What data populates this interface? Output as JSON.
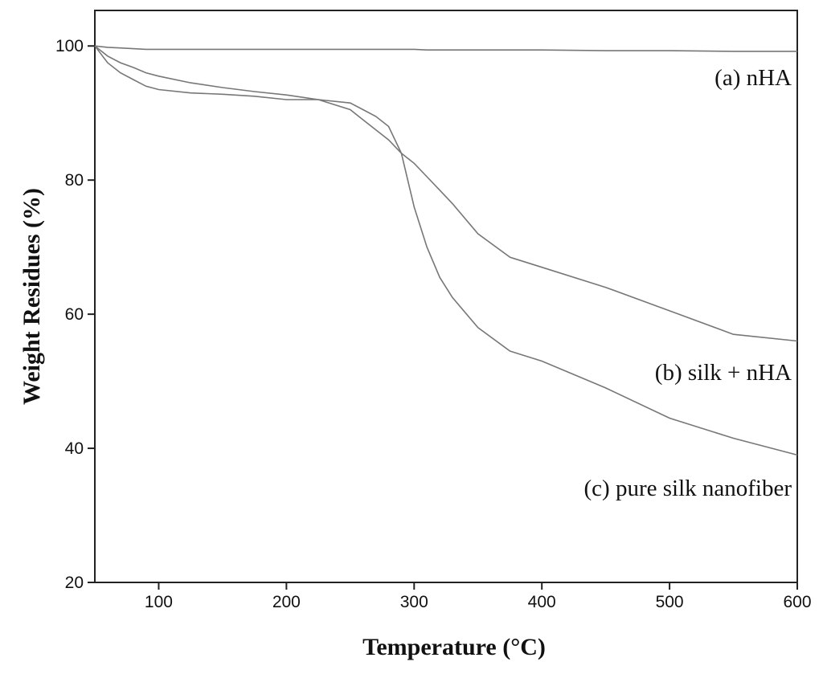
{
  "chart_data": {
    "type": "line",
    "xlabel": "Temperature (°C)",
    "ylabel": "Weight Residues (%)",
    "x": [
      50,
      60,
      70,
      80,
      90,
      100,
      125,
      150,
      175,
      200,
      225,
      250,
      260,
      270,
      280,
      290,
      300,
      310,
      320,
      330,
      350,
      375,
      400,
      450,
      500,
      550,
      600
    ],
    "series": [
      {
        "name": "(a) nHA",
        "color": "#777777",
        "values": [
          100,
          99.8,
          99.7,
          99.6,
          99.5,
          99.5,
          99.5,
          99.5,
          99.5,
          99.5,
          99.5,
          99.5,
          99.5,
          99.5,
          99.5,
          99.5,
          99.5,
          99.4,
          99.4,
          99.4,
          99.4,
          99.4,
          99.4,
          99.3,
          99.3,
          99.2,
          99.2
        ]
      },
      {
        "name": "(b) silk + nHA",
        "color": "#777777",
        "values": [
          100,
          98.5,
          97.5,
          96.8,
          96,
          95.5,
          94.5,
          93.8,
          93.2,
          92.7,
          92,
          90.5,
          89,
          87.5,
          86,
          84,
          82.5,
          80.5,
          78.5,
          76.5,
          72,
          68.5,
          67,
          64,
          60.5,
          57,
          56
        ]
      },
      {
        "name": "(c) pure silk nanofiber",
        "color": "#777777",
        "values": [
          100,
          97.5,
          96,
          95,
          94,
          93.5,
          93,
          92.8,
          92.5,
          92,
          92,
          91.5,
          90.5,
          89.5,
          88,
          84,
          76,
          70,
          65.5,
          62.5,
          58,
          54.5,
          53,
          49,
          44.5,
          41.5,
          39
        ]
      }
    ],
    "xlim": [
      50,
      600
    ],
    "ylim": [
      20,
      105.3
    ],
    "xticks": [
      100,
      200,
      300,
      400,
      500,
      600
    ],
    "yticks": [
      20,
      40,
      60,
      80,
      100
    ]
  }
}
